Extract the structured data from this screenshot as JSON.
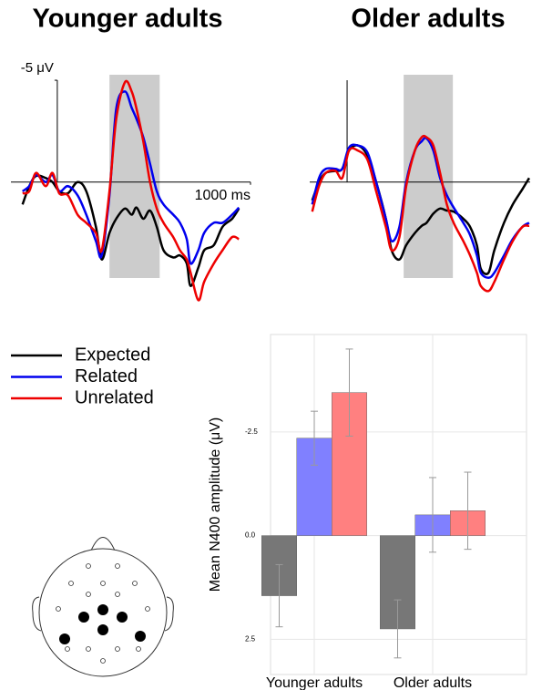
{
  "chart_data": [
    {
      "type": "line",
      "title": "Younger adults",
      "x": [
        -180,
        -145,
        -110,
        -60,
        -25,
        10,
        55,
        105,
        150,
        200,
        230,
        270,
        305,
        350,
        385,
        410,
        445,
        480,
        515,
        550,
        600,
        635,
        670,
        690,
        730,
        760,
        810,
        855,
        905,
        940
      ],
      "xlim": [
        -240,
        1000
      ],
      "ylim": [
        -5.36,
        6.5
      ],
      "y_reversed": true,
      "xticks": [
        {
          "value": 1000,
          "label": "1000 ms"
        }
      ],
      "yticks": [
        {
          "value": -5,
          "label": "-5 μV"
        }
      ],
      "window": [
        270,
        530
      ],
      "window_color": "#cccccc",
      "series": [
        {
          "name": "Expected",
          "color": "#000000",
          "values": [
            1.1,
            0.2,
            -0.3,
            -0.2,
            0,
            0.45,
            0.55,
            0,
            0.45,
            2.2,
            3.8,
            2.5,
            1.8,
            1.3,
            1.6,
            1.25,
            1.8,
            1.4,
            2.2,
            3.35,
            3.7,
            3.6,
            4.0,
            5.1,
            4.2,
            3.35,
            3.1,
            2.2,
            1.8,
            1.3
          ]
        },
        {
          "name": "Related",
          "color": "#0000ee",
          "values": [
            0.45,
            0.2,
            -0.35,
            0,
            -0.35,
            0.45,
            0.2,
            0.65,
            1.6,
            2.9,
            3.6,
            0.65,
            -3.6,
            -4.45,
            -3.65,
            -3.1,
            -2.2,
            -0.9,
            0.45,
            1.1,
            1.6,
            2.0,
            2.8,
            4.0,
            3.35,
            2.5,
            2.0,
            2.0,
            1.6,
            1.25
          ]
        },
        {
          "name": "Unrelated",
          "color": "#ee0000",
          "values": [
            0.55,
            0.45,
            -0.45,
            0.2,
            -0.45,
            0.55,
            0.65,
            1.6,
            2.0,
            2.5,
            3.35,
            0.45,
            -3.1,
            -4.9,
            -4.45,
            -3.6,
            -2.0,
            0,
            1.3,
            2.0,
            2.7,
            3.35,
            3.8,
            4.45,
            5.8,
            4.9,
            4.0,
            3.35,
            2.7,
            2.8
          ]
        }
      ]
    },
    {
      "type": "line",
      "title": "Older adults",
      "x": [
        -180,
        -145,
        -110,
        -60,
        -25,
        10,
        55,
        105,
        150,
        200,
        230,
        270,
        305,
        350,
        385,
        410,
        445,
        480,
        515,
        550,
        600,
        635,
        670,
        690,
        730,
        760,
        810,
        855,
        905,
        940
      ],
      "xlim": [
        -193,
        945
      ],
      "ylim": [
        -5.36,
        6.5
      ],
      "y_reversed": true,
      "window": [
        292,
        546
      ],
      "window_color": "#cccccc",
      "series": [
        {
          "color": "#000000",
          "values": [
            0.9,
            0,
            -0.45,
            -0.55,
            -0.65,
            -1.55,
            -1.8,
            -1.3,
            0,
            1.8,
            3.35,
            3.8,
            3.1,
            2.5,
            2.15,
            2.0,
            1.55,
            1.3,
            1.4,
            1.45,
            1.8,
            2.2,
            3.1,
            4.25,
            4.45,
            3.35,
            2.0,
            1.1,
            0.35,
            -0.2
          ]
        },
        {
          "color": "#0000ee",
          "values": [
            1.1,
            -0.2,
            -0.65,
            -0.65,
            -0.65,
            -1.7,
            -1.8,
            -1.45,
            0,
            1.8,
            2.9,
            2.2,
            0,
            -1.55,
            -2.0,
            -2.15,
            -1.55,
            -0.2,
            0.65,
            1.25,
            2.0,
            2.6,
            3.6,
            4.45,
            4.7,
            4.45,
            3.6,
            2.8,
            2.2,
            2.0
          ]
        },
        {
          "color": "#ee0000",
          "values": [
            1.45,
            0.2,
            -0.45,
            -0.55,
            -0.2,
            -1.55,
            -1.55,
            -1.1,
            0.45,
            2.2,
            3.35,
            2.7,
            0.2,
            -1.55,
            -2.2,
            -2.2,
            -1.8,
            -0.45,
            1.1,
            2.0,
            2.9,
            3.6,
            4.45,
            5.1,
            5.35,
            4.9,
            3.8,
            2.9,
            2.2,
            2.15
          ]
        }
      ]
    },
    {
      "type": "bar",
      "ylabel": "Mean N400 amplitude (μV)",
      "categories": [
        "Younger adults",
        "Older adults"
      ],
      "ylim": [
        -4.85,
        3.35
      ],
      "y_reversed": true,
      "yticks": [
        -2.5,
        {
          "value": 0,
          "label": "0.0"
        },
        2.5
      ],
      "grid": true,
      "error_color": "#999999",
      "series": [
        {
          "color": "#777777",
          "values": [
            1.45,
            2.25
          ],
          "errors": [
            0.75,
            0.7
          ]
        },
        {
          "color": "#8080ff",
          "values": [
            -2.35,
            -0.5
          ],
          "errors": [
            0.65,
            0.9
          ]
        },
        {
          "color": "#ff8080",
          "values": [
            -3.45,
            -0.6
          ],
          "errors": [
            1.05,
            0.93
          ]
        }
      ]
    }
  ]
}
